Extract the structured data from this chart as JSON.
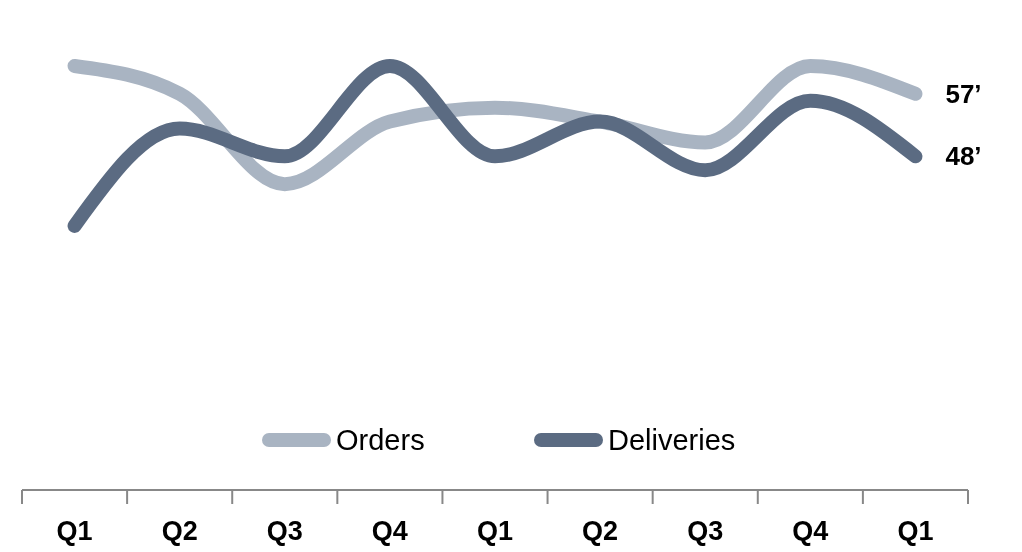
{
  "chart_data": {
    "type": "line",
    "categories": [
      "Q1",
      "Q2",
      "Q3",
      "Q4",
      "Q1",
      "Q2",
      "Q3",
      "Q4",
      "Q1"
    ],
    "series": [
      {
        "name": "Orders",
        "color": "#a9b4c2",
        "values": [
          61,
          57,
          44,
          53,
          55,
          53,
          50,
          61,
          57
        ],
        "value_labels": [
          null,
          null,
          null,
          null,
          null,
          null,
          null,
          null,
          "57’"
        ]
      },
      {
        "name": "Deliveries",
        "color": "#5b6b82",
        "values": [
          38,
          52,
          48,
          61,
          48,
          53,
          46,
          56,
          48
        ],
        "value_labels": [
          null,
          null,
          null,
          null,
          null,
          null,
          null,
          null,
          "48’"
        ]
      }
    ],
    "legend": "bottom",
    "marker": "none",
    "line_style": "solid"
  }
}
